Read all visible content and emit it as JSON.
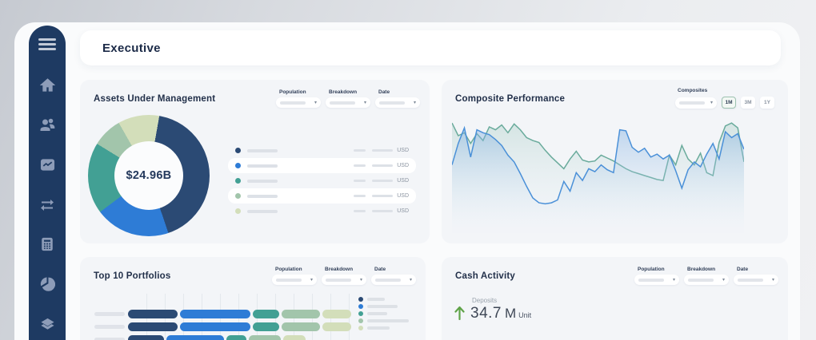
{
  "header": {
    "title": "Executive"
  },
  "sidebar": {
    "items": [
      "menu",
      "home",
      "clients",
      "performance",
      "transactions",
      "calculator",
      "allocation",
      "holdings"
    ]
  },
  "filters": {
    "labels": [
      "Population",
      "Breakdown",
      "Date"
    ]
  },
  "palette": {
    "navy": "#2b4a74",
    "blue": "#2e7cd6",
    "teal": "#42a094",
    "sage": "#a2c5ab",
    "pale": "#d3deba",
    "sidebar_bg": "#1e3a62",
    "card_bg": "#f3f5f8",
    "green_up": "#5fa348"
  },
  "aum": {
    "title": "Assets Under Management",
    "chart_data": {
      "type": "pie",
      "center_label": "$24.96B",
      "start_angle_deg": 10,
      "segments": [
        {
          "color": "#2b4a74",
          "value": 42
        },
        {
          "color": "#2e7cd6",
          "value": 20
        },
        {
          "color": "#42a094",
          "value": 19
        },
        {
          "color": "#a2c5ab",
          "value": 8
        },
        {
          "color": "#d3deba",
          "value": 11
        }
      ]
    },
    "legend": {
      "currency_label": "USD",
      "row_count": 5,
      "striped_rows": [
        1,
        3
      ]
    }
  },
  "composite": {
    "title": "Composite Performance",
    "composites_label": "Composites",
    "ranges": [
      {
        "label": "1M",
        "selected": true
      },
      {
        "label": "3M",
        "selected": false
      },
      {
        "label": "1Y",
        "selected": false
      }
    ],
    "chart_data": {
      "type": "area",
      "ylim": [
        0,
        100
      ],
      "grid": false,
      "series": [
        {
          "name": "composite-blue",
          "color": "#4a90d8",
          "values": [
            52,
            74,
            90,
            60,
            88,
            85,
            83,
            78,
            72,
            62,
            55,
            43,
            30,
            18,
            13,
            12,
            13,
            16,
            35,
            25,
            44,
            36,
            48,
            45,
            52,
            47,
            44,
            88,
            87,
            70,
            65,
            69,
            60,
            63,
            58,
            62,
            46,
            28,
            47,
            55,
            50,
            63,
            74,
            58,
            86,
            80,
            84,
            68
          ]
        },
        {
          "name": "composite-teal",
          "color": "#6aab9c",
          "values": [
            95,
            82,
            85,
            74,
            84,
            77,
            91,
            88,
            93,
            85,
            94,
            88,
            80,
            77,
            75,
            67,
            60,
            54,
            48,
            58,
            66,
            57,
            55,
            56,
            62,
            59,
            56,
            52,
            48,
            45,
            43,
            41,
            39,
            37,
            36,
            62,
            52,
            72,
            58,
            52,
            64,
            44,
            41,
            75,
            92,
            95,
            90,
            55
          ]
        }
      ]
    }
  },
  "top10": {
    "title": "Top 10 Portfolios",
    "chart_data": {
      "type": "bar",
      "stacked": true,
      "orientation": "horizontal",
      "colors": [
        "#2b4a74",
        "#2e7cd6",
        "#42a094",
        "#a2c5ab",
        "#d3deba"
      ],
      "rows": [
        {
          "widths": [
            62,
            88,
            33,
            48,
            36
          ]
        },
        {
          "widths": [
            62,
            88,
            33,
            48,
            36
          ]
        },
        {
          "widths": [
            45,
            72,
            25,
            40,
            28
          ]
        }
      ],
      "legend_line_widths": [
        22,
        38,
        25,
        52,
        28
      ],
      "gridline_count": 12
    }
  },
  "cash": {
    "title": "Cash Activity",
    "deposits": {
      "label": "Deposits",
      "value": "34.7",
      "magnitude": "M",
      "unit": "Unit",
      "direction": "up"
    }
  }
}
